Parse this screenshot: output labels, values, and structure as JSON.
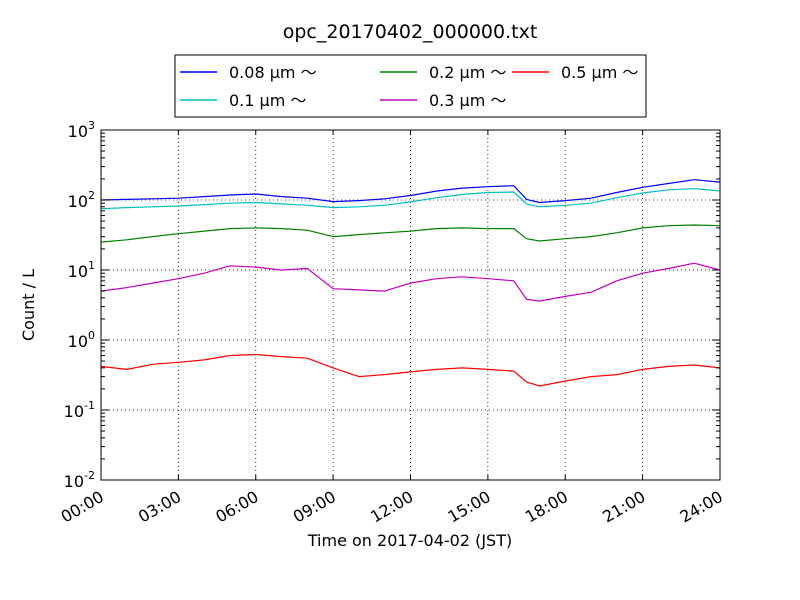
{
  "chart_data": {
    "type": "line",
    "title": "opc_20170402_000000.txt",
    "xlabel": "Time on 2017-04-02 (JST)",
    "ylabel": "Count / L",
    "yscale": "log",
    "xlim": [
      "2017-04-02 00:00",
      "2017-04-03 00:00"
    ],
    "ylim": [
      0.01,
      1000
    ],
    "x_ticks": [
      "00:00",
      "03:00",
      "06:00",
      "09:00",
      "12:00",
      "15:00",
      "18:00",
      "21:00",
      "24:00"
    ],
    "y_ticks": [
      {
        "base": "10",
        "exp": "-2"
      },
      {
        "base": "10",
        "exp": "-1"
      },
      {
        "base": "10",
        "exp": "0"
      },
      {
        "base": "10",
        "exp": "1"
      },
      {
        "base": "10",
        "exp": "2"
      },
      {
        "base": "10",
        "exp": "3"
      }
    ],
    "grid": true,
    "legend_position": "top",
    "x": [
      "00:00",
      "01:00",
      "02:00",
      "03:00",
      "04:00",
      "05:00",
      "06:00",
      "07:00",
      "08:00",
      "09:00",
      "10:00",
      "11:00",
      "12:00",
      "13:00",
      "14:00",
      "15:00",
      "16:00",
      "16:30",
      "17:00",
      "18:00",
      "19:00",
      "20:00",
      "21:00",
      "22:00",
      "23:00",
      "24:00"
    ],
    "series": [
      {
        "name": "0.08 μm ～",
        "color": "#0000ff",
        "values": [
          100,
          102,
          104,
          106,
          112,
          118,
          122,
          112,
          106,
          95,
          98,
          104,
          116,
          134,
          148,
          155,
          160,
          102,
          92,
          98,
          106,
          128,
          152,
          172,
          195,
          180
        ]
      },
      {
        "name": "0.1 μm ～",
        "color": "#00bfbf",
        "values": [
          75,
          78,
          80,
          82,
          86,
          90,
          92,
          88,
          84,
          78,
          80,
          84,
          94,
          108,
          120,
          128,
          130,
          88,
          80,
          84,
          90,
          108,
          126,
          140,
          145,
          135
        ]
      },
      {
        "name": "0.2 μm ～",
        "color": "#008000",
        "values": [
          25,
          27,
          30,
          33,
          36,
          39,
          40,
          39,
          37,
          30,
          32,
          34,
          36,
          39,
          40,
          39,
          39,
          28,
          26,
          28,
          30,
          34,
          40,
          43,
          44,
          43
        ]
      },
      {
        "name": "0.3 μm ～",
        "color": "#bf00bf",
        "values": [
          5.0,
          5.6,
          6.5,
          7.5,
          9.0,
          11.5,
          11.0,
          10.0,
          10.5,
          5.4,
          5.2,
          5.0,
          6.5,
          7.5,
          8.0,
          7.5,
          7.0,
          3.8,
          3.6,
          4.2,
          4.8,
          7.0,
          9.0,
          10.5,
          12.5,
          10.0
        ]
      },
      {
        "name": "0.5 μm ～",
        "color": "#ff0000",
        "values": [
          0.42,
          0.38,
          0.45,
          0.48,
          0.52,
          0.6,
          0.62,
          0.58,
          0.55,
          0.4,
          0.3,
          0.32,
          0.35,
          0.38,
          0.4,
          0.38,
          0.36,
          0.25,
          0.22,
          0.26,
          0.3,
          0.32,
          0.38,
          0.42,
          0.44,
          0.4
        ]
      }
    ]
  }
}
